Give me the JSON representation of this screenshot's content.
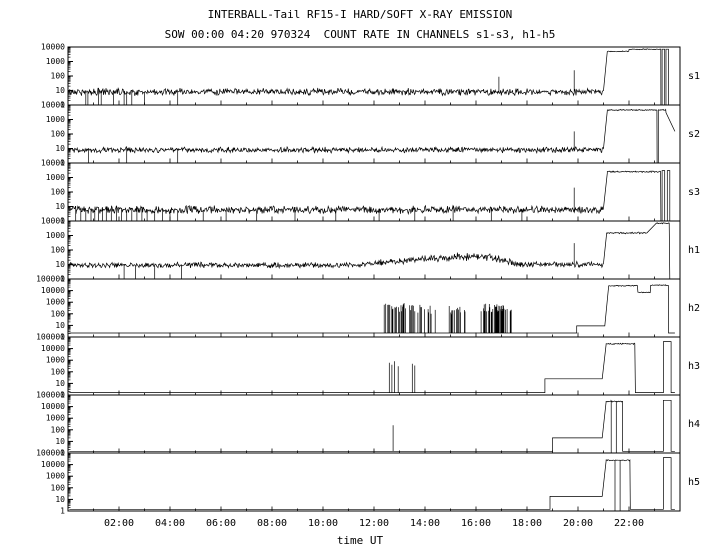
{
  "title": "INTERBALL-Tail RF15-I HARD/SOFT X-RAY EMISSION",
  "subtitle": "SOW 00:00 04:20 970324  COUNT RATE IN CHANNELS s1-s3, h1-h5",
  "xlabel": "time UT",
  "colors": {
    "line": "#000000",
    "background": "#ffffff"
  },
  "chart_data": {
    "type": "line",
    "x_unit": "hours UT",
    "xlim": [
      0,
      24
    ],
    "x_major_ticks": [
      2,
      4,
      6,
      8,
      10,
      12,
      14,
      16,
      18,
      20,
      22
    ],
    "x_tick_labels": [
      "02:00",
      "04:00",
      "06:00",
      "08:00",
      "10:00",
      "12:00",
      "14:00",
      "16:00",
      "18:00",
      "20:00",
      "22:00"
    ],
    "grid": false,
    "scale_y": "log",
    "panels": [
      {
        "name": "s1",
        "ylim": [
          1,
          10000
        ],
        "y_tick_labels": [
          "10000",
          "1000",
          "100",
          "10",
          "1"
        ],
        "segments": [
          {
            "type": "noise",
            "t": [
              0.05,
              21.0
            ],
            "level": 8,
            "spread": 0.28
          },
          {
            "type": "ramp",
            "t": [
              21.0,
              21.15
            ],
            "from": 10,
            "to": 5000
          },
          {
            "type": "noise",
            "t": [
              21.15,
              22.0
            ],
            "level": 5000,
            "spread": 0.05
          },
          {
            "type": "noise",
            "t": [
              22.0,
              23.25
            ],
            "level": 7000,
            "spread": 0.04
          },
          {
            "type": "flat",
            "t": [
              23.25,
              23.3
            ],
            "level": 1
          },
          {
            "type": "flat",
            "t": [
              23.3,
              23.4
            ],
            "level": 7000
          },
          {
            "type": "flat",
            "t": [
              23.4,
              23.45
            ],
            "level": 1
          },
          {
            "type": "flat",
            "t": [
              23.45,
              23.55
            ],
            "level": 7000
          },
          {
            "type": "flat",
            "t": [
              23.55,
              23.8
            ],
            "level": 1
          }
        ],
        "downspikes": [
          0.7,
          0.78,
          1.2,
          1.3,
          1.78,
          2.2,
          2.3,
          2.5,
          3.0,
          4.3
        ],
        "upspikes": [
          {
            "t": 16.9,
            "peak": 90
          },
          {
            "t": 19.85,
            "peak": 250
          }
        ]
      },
      {
        "name": "s2",
        "ylim": [
          1,
          10000
        ],
        "y_tick_labels": [
          "10000",
          "1000",
          "100",
          "10",
          "1"
        ],
        "segments": [
          {
            "type": "noise",
            "t": [
              0.05,
              21.0
            ],
            "level": 8,
            "spread": 0.22
          },
          {
            "type": "ramp",
            "t": [
              21.0,
              21.15
            ],
            "from": 10,
            "to": 4000
          },
          {
            "type": "noise",
            "t": [
              21.15,
              23.1
            ],
            "level": 4500,
            "spread": 0.05
          },
          {
            "type": "flat",
            "t": [
              23.1,
              23.15
            ],
            "level": 1
          },
          {
            "type": "noise",
            "t": [
              23.15,
              23.45
            ],
            "level": 4500,
            "spread": 0.05
          },
          {
            "type": "ramp",
            "t": [
              23.45,
              23.8
            ],
            "from": 3000,
            "to": 150
          }
        ],
        "downspikes": [
          0.8,
          2.3,
          4.3
        ],
        "upspikes": [
          {
            "t": 19.85,
            "peak": 150
          }
        ]
      },
      {
        "name": "s3",
        "ylim": [
          1,
          10000
        ],
        "y_tick_labels": [
          "10000",
          "1000",
          "100",
          "10",
          "1"
        ],
        "segments": [
          {
            "type": "noise",
            "t": [
              0.05,
              21.0
            ],
            "level": 6,
            "spread": 0.3
          },
          {
            "type": "ramp",
            "t": [
              21.0,
              21.15
            ],
            "from": 8,
            "to": 2000
          },
          {
            "type": "noise",
            "t": [
              21.15,
              23.25
            ],
            "level": 2500,
            "spread": 0.06
          },
          {
            "type": "flat",
            "t": [
              23.25,
              23.3
            ],
            "level": 1
          },
          {
            "type": "flat",
            "t": [
              23.3,
              23.4
            ],
            "level": 3000
          },
          {
            "type": "flat",
            "t": [
              23.4,
              23.5
            ],
            "level": 1
          },
          {
            "type": "flat",
            "t": [
              23.5,
              23.6
            ],
            "level": 3000
          },
          {
            "type": "flat",
            "t": [
              23.6,
              23.8
            ],
            "level": 1
          }
        ],
        "downspikes": [
          0.3,
          0.5,
          0.7,
          0.9,
          1.05,
          1.2,
          1.35,
          1.5,
          1.7,
          1.9,
          2.1,
          2.3,
          2.5,
          2.7,
          2.9,
          3.1,
          3.4,
          3.7,
          4.0,
          4.3,
          5.3,
          6.2,
          7.4,
          8.9,
          10.5,
          12.2,
          13.6,
          15.1,
          16.6,
          17.8
        ],
        "upspikes": [
          {
            "t": 19.85,
            "peak": 200
          }
        ]
      },
      {
        "name": "h1",
        "ylim": [
          1,
          10000
        ],
        "y_tick_labels": [
          "10000",
          "1000",
          "100",
          "10",
          "1"
        ],
        "segments": [
          {
            "type": "noise",
            "t": [
              0.05,
              11.5
            ],
            "level": 9,
            "spread": 0.22
          },
          {
            "type": "noise",
            "t": [
              11.5,
              12.5
            ],
            "level": 11,
            "level2": 15,
            "spread": 0.24
          },
          {
            "type": "noise",
            "t": [
              12.5,
              14.0
            ],
            "level": 15,
            "level2": 24,
            "spread": 0.28
          },
          {
            "type": "noise",
            "t": [
              14.0,
              15.2
            ],
            "level": 24,
            "level2": 32,
            "spread": 0.3
          },
          {
            "type": "noise",
            "t": [
              15.2,
              16.6
            ],
            "level": 34,
            "spread": 0.32
          },
          {
            "type": "noise",
            "t": [
              16.6,
              17.6
            ],
            "level": 28,
            "level2": 12,
            "spread": 0.3
          },
          {
            "type": "noise",
            "t": [
              17.6,
              21.0
            ],
            "level": 10,
            "spread": 0.22
          },
          {
            "type": "ramp",
            "t": [
              21.0,
              21.12
            ],
            "from": 12,
            "to": 1300
          },
          {
            "type": "noise",
            "t": [
              21.12,
              22.7
            ],
            "level": 1500,
            "spread": 0.07
          },
          {
            "type": "ramp",
            "t": [
              22.7,
              23.05
            ],
            "from": 1500,
            "to": 6500
          },
          {
            "type": "noise",
            "t": [
              23.05,
              23.6
            ],
            "level": 7000,
            "spread": 0.04
          },
          {
            "type": "flat",
            "t": [
              23.6,
              23.8
            ],
            "level": 1
          }
        ],
        "downspikes": [
          2.2,
          2.65,
          3.4,
          4.45
        ],
        "upspikes": [
          {
            "t": 19.85,
            "peak": 300
          }
        ]
      },
      {
        "name": "h2",
        "ylim": [
          1,
          100000
        ],
        "y_tick_labels": [
          "100000",
          "10000",
          "1000",
          "100",
          "10",
          "1"
        ],
        "segments": [
          {
            "type": "flat",
            "t": [
              0.05,
              12.4
            ],
            "level": 2.2
          },
          {
            "type": "burst",
            "t": [
              12.4,
              13.6
            ],
            "base": 2.2,
            "peak": 350,
            "density": 0.55
          },
          {
            "type": "burst",
            "t": [
              13.6,
              14.4
            ],
            "base": 2.2,
            "peak": 250,
            "density": 0.4
          },
          {
            "type": "flat",
            "t": [
              14.4,
              14.95
            ],
            "level": 2.2
          },
          {
            "type": "burst",
            "t": [
              14.95,
              15.6
            ],
            "base": 2.2,
            "peak": 220,
            "density": 0.45
          },
          {
            "type": "flat",
            "t": [
              15.6,
              16.2
            ],
            "level": 2.2
          },
          {
            "type": "burst",
            "t": [
              16.2,
              17.4
            ],
            "base": 2.2,
            "peak": 300,
            "density": 0.5
          },
          {
            "type": "flat",
            "t": [
              17.4,
              19.95
            ],
            "level": 2.2
          },
          {
            "type": "flat",
            "t": [
              19.95,
              21.05
            ],
            "level": 9
          },
          {
            "type": "ramp",
            "t": [
              21.05,
              21.2
            ],
            "from": 9,
            "to": 22000
          },
          {
            "type": "noise",
            "t": [
              21.2,
              22.35
            ],
            "level": 26000,
            "spread": 0.05
          },
          {
            "type": "noise",
            "t": [
              22.35,
              22.85
            ],
            "level": 7000,
            "spread": 0.05
          },
          {
            "type": "noise",
            "t": [
              22.85,
              23.55
            ],
            "level": 30000,
            "spread": 0.05
          },
          {
            "type": "flat",
            "t": [
              23.55,
              23.8
            ],
            "level": 2.2
          }
        ],
        "downspikes": [],
        "upspikes": []
      },
      {
        "name": "h3",
        "ylim": [
          1,
          100000
        ],
        "y_tick_labels": [
          "100000",
          "10000",
          "1000",
          "100",
          "10",
          "1"
        ],
        "segments": [
          {
            "type": "flat",
            "t": [
              0.05,
              18.7
            ],
            "level": 1.6
          },
          {
            "type": "flat",
            "t": [
              18.7,
              20.95
            ],
            "level": 25
          },
          {
            "type": "ramp",
            "t": [
              20.95,
              21.1
            ],
            "from": 25,
            "to": 22000
          },
          {
            "type": "noise",
            "t": [
              21.1,
              22.25
            ],
            "level": 26000,
            "spread": 0.07
          },
          {
            "type": "flat",
            "t": [
              22.25,
              23.35
            ],
            "level": 1.6
          },
          {
            "type": "flat",
            "t": [
              23.35,
              23.65
            ],
            "level": 40000
          },
          {
            "type": "flat",
            "t": [
              23.65,
              23.8
            ],
            "level": 1.6
          }
        ],
        "downspikes": [],
        "upspikes": [
          {
            "t": 12.6,
            "peak": 600
          },
          {
            "t": 12.7,
            "peak": 400
          },
          {
            "t": 12.8,
            "peak": 800
          },
          {
            "t": 12.95,
            "peak": 300
          },
          {
            "t": 13.5,
            "peak": 500
          },
          {
            "t": 13.6,
            "peak": 350
          }
        ]
      },
      {
        "name": "h4",
        "ylim": [
          1,
          100000
        ],
        "y_tick_labels": [
          "100000",
          "10000",
          "1000",
          "100",
          "10",
          "1"
        ],
        "segments": [
          {
            "type": "flat",
            "t": [
              0.05,
              19.0
            ],
            "level": 1.4
          },
          {
            "type": "flat",
            "t": [
              19.0,
              20.95
            ],
            "level": 20
          },
          {
            "type": "ramp",
            "t": [
              20.95,
              21.1
            ],
            "from": 20,
            "to": 25000
          },
          {
            "type": "noise",
            "t": [
              21.1,
              21.75
            ],
            "level": 28000,
            "spread": 0.06
          },
          {
            "type": "flat",
            "t": [
              21.75,
              23.35
            ],
            "level": 1.4
          },
          {
            "type": "flat",
            "t": [
              23.35,
              23.65
            ],
            "level": 35000
          },
          {
            "type": "flat",
            "t": [
              23.65,
              23.8
            ],
            "level": 1.4
          }
        ],
        "downspikes": [
          21.3,
          21.5
        ],
        "upspikes": [
          {
            "t": 12.75,
            "peak": 250
          }
        ]
      },
      {
        "name": "h5",
        "ylim": [
          1,
          100000
        ],
        "y_tick_labels": [
          "100000",
          "10000",
          "1000",
          "100",
          "10",
          "1"
        ],
        "segments": [
          {
            "type": "flat",
            "t": [
              0.05,
              18.9
            ],
            "level": 1.4
          },
          {
            "type": "flat",
            "t": [
              18.9,
              20.95
            ],
            "level": 18
          },
          {
            "type": "ramp",
            "t": [
              20.95,
              21.1
            ],
            "from": 18,
            "to": 20000
          },
          {
            "type": "noise",
            "t": [
              21.1,
              22.05
            ],
            "level": 24000,
            "spread": 0.06
          },
          {
            "type": "flat",
            "t": [
              22.05,
              23.35
            ],
            "level": 1.4
          },
          {
            "type": "flat",
            "t": [
              23.35,
              23.65
            ],
            "level": 40000
          },
          {
            "type": "flat",
            "t": [
              23.65,
              23.8
            ],
            "level": 1.4
          }
        ],
        "downspikes": [
          21.45,
          21.65
        ],
        "upspikes": []
      }
    ]
  }
}
